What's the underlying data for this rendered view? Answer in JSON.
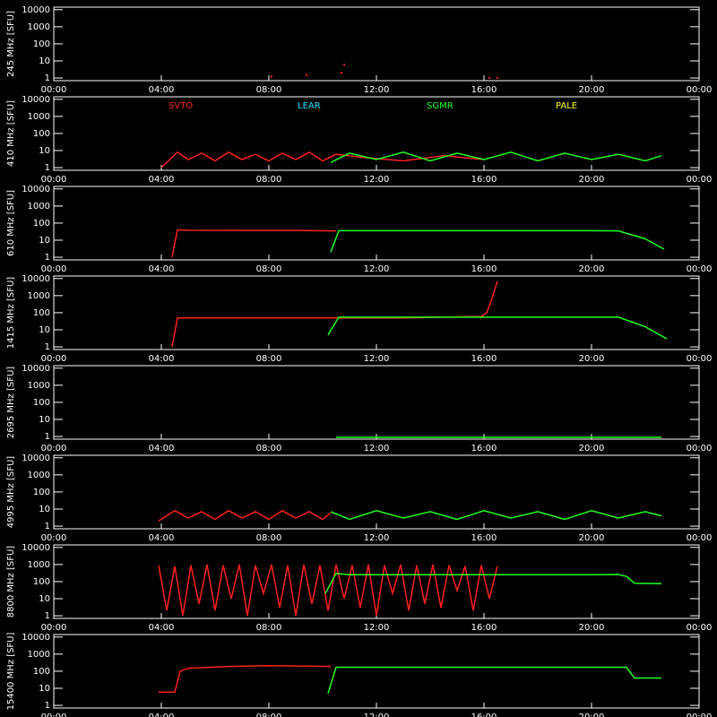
{
  "chart_data": [
    {
      "type": "scatter",
      "ylabel": "245 MHz [SFU]",
      "xlim": [
        0,
        24
      ],
      "ylim": [
        0.7,
        14000
      ],
      "log_scale": true,
      "yticks": [
        1,
        10,
        100,
        1000,
        10000
      ],
      "xticks": [
        {
          "value": 0,
          "label": "00:00"
        },
        {
          "value": 4,
          "label": "04:00"
        },
        {
          "value": 8,
          "label": "08:00"
        },
        {
          "value": 12,
          "label": "12:00"
        },
        {
          "value": 16,
          "label": "16:00"
        },
        {
          "value": 20,
          "label": "20:00"
        },
        {
          "value": 24,
          "label": "00:00"
        }
      ],
      "series": [
        {
          "color": "#ff2020",
          "x": [
            8.1,
            9.4,
            10.7,
            10.8,
            16.2,
            16.5
          ],
          "values": [
            1.2,
            1.5,
            2,
            6,
            1,
            1
          ]
        }
      ]
    },
    {
      "type": "line",
      "ylabel": "410 MHz [SFU]",
      "xlim": [
        0,
        24
      ],
      "ylim": [
        0.7,
        14000
      ],
      "log_scale": true,
      "yticks": [
        1,
        10,
        100,
        1000,
        10000
      ],
      "xticks": [
        {
          "value": 0,
          "label": "00:00"
        },
        {
          "value": 4,
          "label": "04:00"
        },
        {
          "value": 8,
          "label": "08:00"
        },
        {
          "value": 12,
          "label": "12:00"
        },
        {
          "value": 16,
          "label": "16:00"
        },
        {
          "value": 20,
          "label": "20:00"
        },
        {
          "value": 24,
          "label": "00:00"
        }
      ],
      "legend": [
        {
          "name": "SVTO",
          "color": "#ff2020"
        },
        {
          "name": "LEAR",
          "color": "#20e0ff"
        },
        {
          "name": "SGMR",
          "color": "#20ff20"
        },
        {
          "name": "PALE",
          "color": "#ffff30"
        }
      ],
      "series": [
        {
          "color": "#ff2020",
          "x": [
            4.0,
            4.6,
            5.0,
            5.5,
            6.0,
            6.5,
            7.0,
            7.5,
            8.0,
            8.5,
            9.0,
            9.5,
            10.0,
            10.5,
            11.5,
            13.0,
            14.5,
            16.0
          ],
          "values": [
            1,
            8,
            3,
            7,
            2.5,
            8,
            3,
            6,
            2.5,
            7,
            3,
            8,
            2.5,
            6,
            4,
            2.5,
            5,
            3
          ]
        },
        {
          "color": "#20ff20",
          "x": [
            10.3,
            11.0,
            12.0,
            13.0,
            14.0,
            15.0,
            16.0,
            17.0,
            18.0,
            19.0,
            20.0,
            21.0,
            22.0,
            22.6
          ],
          "values": [
            2,
            7,
            3,
            8,
            2.5,
            7,
            3,
            8,
            2.5,
            7,
            3,
            6,
            2.5,
            5
          ]
        }
      ]
    },
    {
      "type": "line",
      "ylabel": "610 MHz [SFU]",
      "xlim": [
        0,
        24
      ],
      "ylim": [
        0.7,
        14000
      ],
      "log_scale": true,
      "yticks": [
        1,
        10,
        100,
        1000,
        10000
      ],
      "xticks": [
        {
          "value": 0,
          "label": "00:00"
        },
        {
          "value": 4,
          "label": "04:00"
        },
        {
          "value": 8,
          "label": "08:00"
        },
        {
          "value": 12,
          "label": "12:00"
        },
        {
          "value": 16,
          "label": "16:00"
        },
        {
          "value": 20,
          "label": "20:00"
        },
        {
          "value": 24,
          "label": "00:00"
        }
      ],
      "series": [
        {
          "color": "#ff2020",
          "x": [
            4.4,
            4.6,
            5.0,
            7.0,
            9.0,
            10.5
          ],
          "values": [
            1,
            40,
            38,
            37,
            37,
            35
          ]
        },
        {
          "color": "#20ff20",
          "x": [
            10.3,
            10.6,
            12.0,
            16.0,
            20.0,
            21.0,
            22.0,
            22.7
          ],
          "values": [
            2,
            36,
            36,
            36,
            36,
            35,
            12,
            3
          ]
        }
      ]
    },
    {
      "type": "line",
      "ylabel": "1415 MHz [SFU]",
      "xlim": [
        0,
        24
      ],
      "ylim": [
        0.7,
        14000
      ],
      "log_scale": true,
      "yticks": [
        1,
        10,
        100,
        1000,
        10000
      ],
      "xticks": [
        {
          "value": 0,
          "label": "00:00"
        },
        {
          "value": 4,
          "label": "04:00"
        },
        {
          "value": 8,
          "label": "08:00"
        },
        {
          "value": 12,
          "label": "12:00"
        },
        {
          "value": 16,
          "label": "16:00"
        },
        {
          "value": 20,
          "label": "20:00"
        },
        {
          "value": 24,
          "label": "00:00"
        }
      ],
      "series": [
        {
          "color": "#ff2020",
          "x": [
            4.4,
            4.6,
            5.0,
            8.0,
            10.0,
            13.0,
            15.9,
            16.1,
            16.3,
            16.5
          ],
          "values": [
            1,
            50,
            50,
            50,
            50,
            50,
            60,
            100,
            700,
            7000
          ]
        },
        {
          "color": "#20ff20",
          "x": [
            10.2,
            10.6,
            12.0,
            16.0,
            20.0,
            21.0,
            22.0,
            22.8
          ],
          "values": [
            5,
            55,
            55,
            55,
            55,
            55,
            15,
            3
          ]
        }
      ]
    },
    {
      "type": "line",
      "ylabel": "2695 MHz [SFU]",
      "xlim": [
        0,
        24
      ],
      "ylim": [
        0.7,
        14000
      ],
      "log_scale": true,
      "yticks": [
        1,
        10,
        100,
        1000,
        10000
      ],
      "xticks": [
        {
          "value": 0,
          "label": "00:00"
        },
        {
          "value": 4,
          "label": "04:00"
        },
        {
          "value": 8,
          "label": "08:00"
        },
        {
          "value": 12,
          "label": "12:00"
        },
        {
          "value": 16,
          "label": "16:00"
        },
        {
          "value": 20,
          "label": "20:00"
        },
        {
          "value": 24,
          "label": "00:00"
        }
      ],
      "series": [
        {
          "color": "#20ff20",
          "x": [
            10.5,
            16.0,
            22.6
          ],
          "values": [
            0.9,
            0.9,
            0.9
          ]
        }
      ]
    },
    {
      "type": "line",
      "ylabel": "4995 MHz [SFU]",
      "xlim": [
        0,
        24
      ],
      "ylim": [
        0.7,
        14000
      ],
      "log_scale": true,
      "yticks": [
        1,
        10,
        100,
        1000,
        10000
      ],
      "xticks": [
        {
          "value": 0,
          "label": "00:00"
        },
        {
          "value": 4,
          "label": "04:00"
        },
        {
          "value": 8,
          "label": "08:00"
        },
        {
          "value": 12,
          "label": "12:00"
        },
        {
          "value": 16,
          "label": "16:00"
        },
        {
          "value": 20,
          "label": "20:00"
        },
        {
          "value": 24,
          "label": "00:00"
        }
      ],
      "series": [
        {
          "color": "#ff2020",
          "x": [
            3.9,
            4.5,
            5.0,
            5.5,
            6.0,
            6.5,
            7.0,
            7.5,
            8.0,
            8.5,
            9.0,
            9.5,
            10.0,
            10.3
          ],
          "values": [
            2,
            8,
            3,
            7,
            2.5,
            8,
            3,
            7,
            2.5,
            8,
            3,
            7,
            2.5,
            6
          ]
        },
        {
          "color": "#20ff20",
          "x": [
            10.3,
            11.0,
            12.0,
            13.0,
            14.0,
            15.0,
            16.0,
            17.0,
            18.0,
            19.0,
            20.0,
            21.0,
            22.0,
            22.6
          ],
          "values": [
            7,
            2.5,
            8,
            3,
            7,
            2.5,
            8,
            3,
            7,
            2.5,
            8,
            3,
            7,
            4
          ]
        }
      ]
    },
    {
      "type": "line",
      "ylabel": "8800 MHz [SFU]",
      "xlim": [
        0,
        24
      ],
      "ylim": [
        0.7,
        14000
      ],
      "log_scale": true,
      "yticks": [
        1,
        10,
        100,
        1000,
        10000
      ],
      "xticks": [
        {
          "value": 0,
          "label": "00:00"
        },
        {
          "value": 4,
          "label": "04:00"
        },
        {
          "value": 8,
          "label": "08:00"
        },
        {
          "value": 12,
          "label": "12:00"
        },
        {
          "value": 16,
          "label": "16:00"
        },
        {
          "value": 20,
          "label": "20:00"
        },
        {
          "value": 24,
          "label": "00:00"
        }
      ],
      "series": [
        {
          "color": "#ff2020",
          "x": [
            3.9,
            4.2,
            4.5,
            4.8,
            5.1,
            5.4,
            5.7,
            6.0,
            6.3,
            6.6,
            6.9,
            7.2,
            7.5,
            7.8,
            8.1,
            8.4,
            8.7,
            9.0,
            9.3,
            9.6,
            9.9,
            10.2,
            10.5,
            10.8,
            11.1,
            11.4,
            11.7,
            12.0,
            12.3,
            12.6,
            12.9,
            13.2,
            13.5,
            13.8,
            14.1,
            14.4,
            14.7,
            15.0,
            15.3,
            15.6,
            15.9,
            16.2,
            16.5
          ],
          "values": [
            900,
            2,
            800,
            1,
            900,
            5,
            1000,
            2,
            900,
            10,
            1000,
            1,
            900,
            20,
            1000,
            3,
            900,
            1,
            1000,
            5,
            900,
            2,
            1000,
            10,
            900,
            3,
            1000,
            1,
            900,
            20,
            1000,
            2,
            900,
            5,
            1000,
            3,
            900,
            30,
            800,
            2,
            900,
            10,
            800
          ]
        },
        {
          "color": "#20ff20",
          "x": [
            10.1,
            10.5,
            11.0,
            12.0,
            16.0,
            20.0,
            21.0,
            21.3,
            21.6,
            22.6
          ],
          "values": [
            20,
            300,
            250,
            250,
            250,
            250,
            260,
            200,
            80,
            75
          ]
        }
      ]
    },
    {
      "type": "line",
      "ylabel": "15400 MHz [SFU]",
      "xlim": [
        0,
        24
      ],
      "ylim": [
        0.7,
        14000
      ],
      "log_scale": true,
      "yticks": [
        1,
        10,
        100,
        1000,
        10000
      ],
      "xticks": [
        {
          "value": 0,
          "label": "00:00"
        },
        {
          "value": 4,
          "label": "04:00"
        },
        {
          "value": 8,
          "label": "08:00"
        },
        {
          "value": 12,
          "label": "12:00"
        },
        {
          "value": 16,
          "label": "16:00"
        },
        {
          "value": 20,
          "label": "20:00"
        },
        {
          "value": 24,
          "label": "00:00"
        }
      ],
      "series": [
        {
          "color": "#ff2020",
          "x": [
            3.9,
            4.5,
            4.7,
            5.0,
            6.5,
            8.0,
            9.5,
            10.3
          ],
          "values": [
            6,
            6,
            100,
            150,
            190,
            210,
            200,
            190
          ]
        },
        {
          "color": "#20ff20",
          "x": [
            10.2,
            10.5,
            12.0,
            16.0,
            21.0,
            21.3,
            21.6,
            22.6
          ],
          "values": [
            5,
            170,
            170,
            170,
            170,
            170,
            40,
            40
          ]
        }
      ]
    }
  ]
}
